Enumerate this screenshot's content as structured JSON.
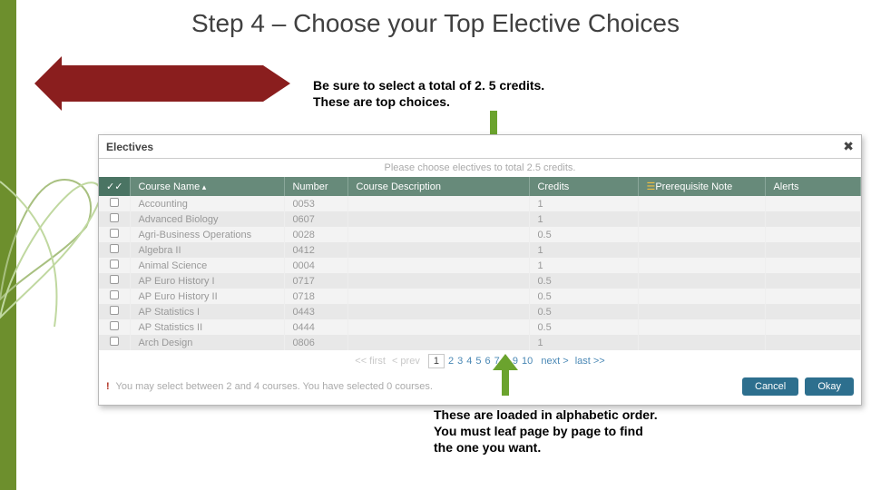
{
  "title": "Step 4 – Choose your Top Elective Choices",
  "callout_top_l1": "Be sure to select a total of 2. 5 credits.",
  "callout_top_l2": "These are top choices.",
  "callout_bottom_l1": "These are loaded in alphabetic order.",
  "callout_bottom_l2": "You must leaf page by page to find",
  "callout_bottom_l3": "the one you want.",
  "panel": {
    "title": "Electives",
    "instruction": "Please choose electives to total 2.5 credits.",
    "headers": {
      "name": "Course Name",
      "number": "Number",
      "desc": "Course Description",
      "credits": "Credits",
      "prereq": "Prerequisite Note",
      "alerts": "Alerts"
    },
    "rows": [
      {
        "name": "Accounting",
        "number": "0053",
        "credits": "1"
      },
      {
        "name": "Advanced Biology",
        "number": "0607",
        "credits": "1"
      },
      {
        "name": "Agri-Business Operations",
        "number": "0028",
        "credits": "0.5"
      },
      {
        "name": "Algebra II",
        "number": "0412",
        "credits": "1"
      },
      {
        "name": "Animal Science",
        "number": "0004",
        "credits": "1"
      },
      {
        "name": "AP Euro History I",
        "number": "0717",
        "credits": "0.5"
      },
      {
        "name": "AP Euro History II",
        "number": "0718",
        "credits": "0.5"
      },
      {
        "name": "AP Statistics I",
        "number": "0443",
        "credits": "0.5"
      },
      {
        "name": "AP Statistics II",
        "number": "0444",
        "credits": "0.5"
      },
      {
        "name": "Arch Design",
        "number": "0806",
        "credits": "1"
      }
    ],
    "pager": {
      "first": "<< first",
      "prev": "< prev",
      "pages": [
        "1",
        "2",
        "3",
        "4",
        "5",
        "6",
        "7",
        "8",
        "9",
        "10"
      ],
      "next": "next >",
      "last": "last >>"
    },
    "footer_msg": "You may select between 2 and 4 courses. You have selected 0 courses.",
    "cancel": "Cancel",
    "okay": "Okay"
  },
  "colors": {
    "arrow_block": "#8a1e1e",
    "arrow_green": "#6ba32e",
    "table_header": "#678a7a",
    "btn": "#2d6f8e"
  }
}
